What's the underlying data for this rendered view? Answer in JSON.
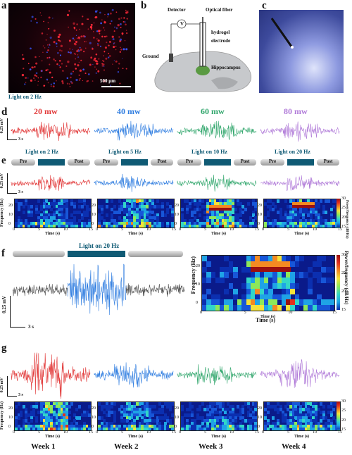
{
  "panels": {
    "a": {
      "label": "a",
      "caption": "Light on 2 Hz",
      "scalebar": "500 µm"
    },
    "b": {
      "label": "b",
      "detector": "Detector",
      "detector_symbol": "V",
      "optical_fiber": "Optical fiber",
      "hydrogel": "hydrogel",
      "electrode": "electrode",
      "ground": "Ground",
      "hippocampus": "Hippocampus"
    },
    "c": {
      "label": "c"
    },
    "d": {
      "label": "d",
      "powers": [
        "20 mw",
        "40 mw",
        "60 mw",
        "80 mw"
      ],
      "colors": [
        "#e23b3b",
        "#2f7de0",
        "#2ea56a",
        "#b07ad8"
      ],
      "scale_v": "0.25 mV",
      "scale_t": "3 s"
    },
    "e": {
      "label": "e",
      "titles": [
        "Light on 2 Hz",
        "Light on 5 Hz",
        "Light on 10 Hz",
        "Light on 20 Hz"
      ],
      "pre": "Pre",
      "post": "Post",
      "scale_v": "0.25 mV",
      "scale_t": "3 s",
      "ylabel": "Frequency (Hz)",
      "xlabel": "Time (s)",
      "xticks": [
        "0",
        "5",
        "10",
        "15"
      ],
      "yticks": [
        "0",
        "10",
        "20"
      ],
      "cbar_label": "Power/frequency (dB/Hz)",
      "cbar_ticks": [
        "30",
        "25",
        "20",
        "15"
      ]
    },
    "f": {
      "label": "f",
      "title": "Light on 20  Hz",
      "scale_v": "0.25 mV",
      "scale_t": "3 s",
      "ylabel": "Frequency (Hz)",
      "xlabel": "Time (s)",
      "xticks": [
        "0",
        "5",
        "10",
        "15"
      ],
      "yticks": [
        "0",
        "10",
        "20"
      ],
      "cbar_label": "Power/frequency (dB/Hz)",
      "cbar_ticks": [
        "30",
        "25",
        "20",
        "15"
      ]
    },
    "g": {
      "label": "g",
      "weeks": [
        "Week 1",
        "Week 2",
        "Week 3",
        "Week 4"
      ],
      "scale_v": "0.25 mV",
      "scale_t": "3 s",
      "ylabel": "Frequency (Hz)",
      "xlabel": "Time (s)",
      "xticks": [
        "0",
        "5",
        "10",
        "15"
      ],
      "yticks": [
        "0",
        "10",
        "20"
      ],
      "cbar_ticks": [
        "30",
        "25",
        "20",
        "15"
      ]
    }
  },
  "colors": {
    "bar": "#0f5a74",
    "trace_gray": "#555555",
    "trace_blue": "#2f7de0"
  }
}
